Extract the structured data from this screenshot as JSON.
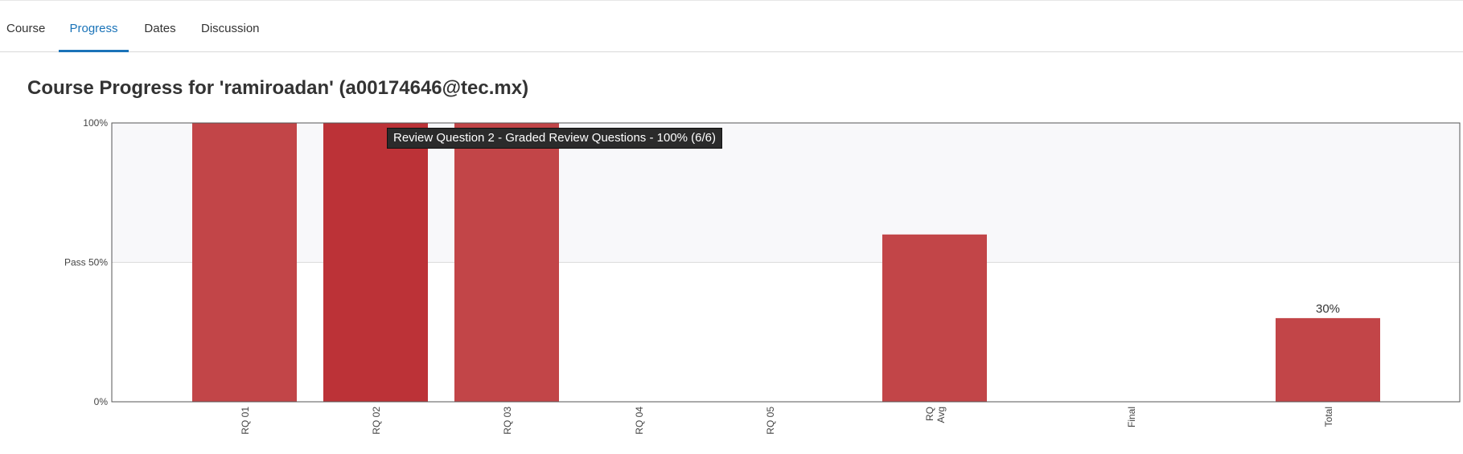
{
  "nav": {
    "tabs": [
      {
        "label": "Course",
        "active": false
      },
      {
        "label": "Progress",
        "active": true
      },
      {
        "label": "Dates",
        "active": false
      },
      {
        "label": "Discussion",
        "active": false
      }
    ]
  },
  "page": {
    "title": "Course Progress for 'ramiroadan' (a00174646@tec.mx)"
  },
  "tooltip": {
    "text": "Review Question 2 - Graded Review Questions - 100% (6/6)"
  },
  "colors": {
    "accent": "#1a73b8",
    "bar": "#c24548",
    "bar_highlight": "#bc3237",
    "pass_region": "#f8f8fa"
  },
  "chart_data": {
    "type": "bar",
    "ylim": [
      0,
      100
    ],
    "yticks": [
      {
        "value": 0,
        "label": "0%"
      },
      {
        "value": 50,
        "label": "Pass 50%"
      },
      {
        "value": 100,
        "label": "100%"
      }
    ],
    "categories": [
      "RQ 01",
      "RQ 02",
      "RQ 03",
      "RQ 04",
      "RQ 05",
      "RQ Avg",
      "Final",
      "Total"
    ],
    "category_lines": [
      [
        "RQ 01"
      ],
      [
        "RQ 02"
      ],
      [
        "RQ 03"
      ],
      [
        "RQ 04"
      ],
      [
        "RQ 05"
      ],
      [
        "RQ",
        "Avg"
      ],
      [
        "Final"
      ],
      [
        "Total"
      ]
    ],
    "values": [
      100,
      100,
      100,
      0,
      0,
      60,
      0,
      30
    ],
    "highlighted_index": 1,
    "data_labels": [
      {
        "index": 7,
        "text": "30%"
      }
    ],
    "pass_threshold": 50
  }
}
